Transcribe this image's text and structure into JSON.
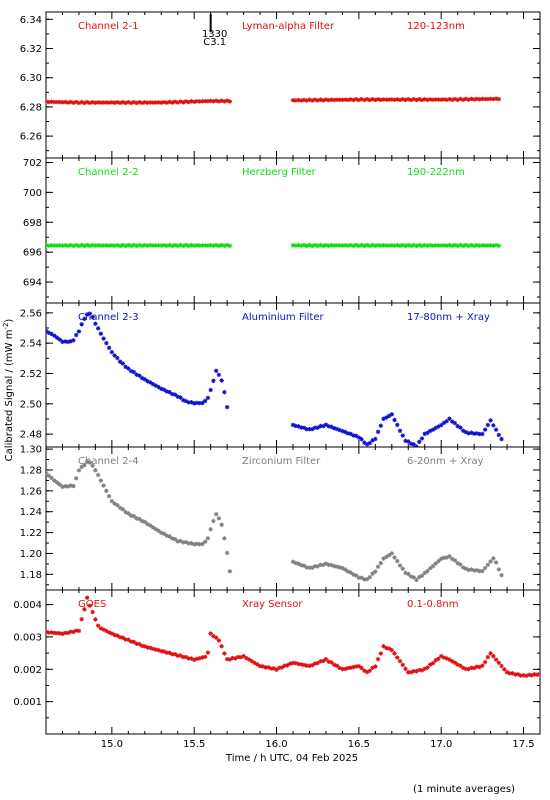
{
  "chart_data": {
    "type": "scatter",
    "marker": "asterisk",
    "xlabel": "Time / h UTC, 04 Feb 2025",
    "ylabel": "Calibrated Signal / (mW m",
    "ylabel_sup": "-2",
    "ylabel_close": ")",
    "footnote": "(1 minute averages)",
    "xlim": [
      14.6,
      17.6
    ],
    "xticks": [
      15.0,
      15.5,
      16.0,
      16.5,
      17.0,
      17.5
    ],
    "xtick_labels": [
      "15.0",
      "15.5",
      "16.0",
      "16.5",
      "17.0",
      "17.5"
    ],
    "annotations": [
      {
        "text1": "1330",
        "text2": "C3.1",
        "x": 15.6,
        "panel": 0
      }
    ],
    "panels": [
      {
        "labels": [
          "Channel 2-1",
          "Lyman-alpha Filter",
          "120-123nm"
        ],
        "color": "#e01010",
        "ylim": [
          6.245,
          6.345
        ],
        "yticks": [
          6.26,
          6.28,
          6.3,
          6.32,
          6.34
        ],
        "ytick_labels": [
          "6.26",
          "6.28",
          "6.30",
          "6.32",
          "6.34"
        ],
        "knots": [
          [
            14.6,
            6.2835
          ],
          [
            14.8,
            6.283
          ],
          [
            15.0,
            6.283
          ],
          [
            15.3,
            6.283
          ],
          [
            15.6,
            6.284
          ],
          [
            15.72,
            6.284
          ],
          [
            16.1,
            6.2845
          ],
          [
            16.5,
            6.285
          ],
          [
            17.0,
            6.285
          ],
          [
            17.35,
            6.2855
          ]
        ],
        "segments": [
          [
            14.6,
            15.72
          ],
          [
            16.1,
            17.35
          ]
        ]
      },
      {
        "labels": [
          "Channel 2-2",
          "Herzberg Filter",
          "190-222nm"
        ],
        "color": "#10dd10",
        "ylim": [
          692.6,
          702.3
        ],
        "yticks": [
          694,
          696,
          698,
          700,
          702
        ],
        "ytick_labels": [
          "694",
          "696",
          "698",
          "700",
          "702"
        ],
        "knots": [
          [
            14.6,
            696.45
          ],
          [
            15.0,
            696.45
          ],
          [
            15.5,
            696.45
          ],
          [
            15.72,
            696.45
          ],
          [
            16.1,
            696.45
          ],
          [
            16.8,
            696.45
          ],
          [
            17.35,
            696.45
          ]
        ],
        "segments": [
          [
            14.6,
            15.72
          ],
          [
            16.1,
            17.35
          ]
        ]
      },
      {
        "labels": [
          "Channel 2-3",
          "Aluminium Filter",
          "17-80nm + Xray"
        ],
        "color": "#1010d0",
        "ylim": [
          2.4715,
          2.5665
        ],
        "yticks": [
          2.48,
          2.5,
          2.52,
          2.54,
          2.56
        ],
        "ytick_labels": [
          "2.48",
          "2.50",
          "2.52",
          "2.54",
          "2.56"
        ],
        "knots": [
          [
            14.6,
            2.548
          ],
          [
            14.65,
            2.545
          ],
          [
            14.7,
            2.541
          ],
          [
            14.76,
            2.541
          ],
          [
            14.8,
            2.548
          ],
          [
            14.84,
            2.558
          ],
          [
            14.87,
            2.56
          ],
          [
            14.9,
            2.553
          ],
          [
            14.95,
            2.543
          ],
          [
            15.0,
            2.534
          ],
          [
            15.05,
            2.528
          ],
          [
            15.1,
            2.523
          ],
          [
            15.2,
            2.516
          ],
          [
            15.3,
            2.51
          ],
          [
            15.4,
            2.505
          ],
          [
            15.45,
            2.5015
          ],
          [
            15.5,
            2.5005
          ],
          [
            15.55,
            2.5005
          ],
          [
            15.58,
            2.503
          ],
          [
            15.61,
            2.512
          ],
          [
            15.63,
            2.522
          ],
          [
            15.66,
            2.518
          ],
          [
            15.69,
            2.505
          ],
          [
            15.71,
            2.49
          ],
          [
            16.1,
            2.486
          ],
          [
            16.2,
            2.483
          ],
          [
            16.3,
            2.486
          ],
          [
            16.35,
            2.484
          ],
          [
            16.4,
            2.482
          ],
          [
            16.5,
            2.478
          ],
          [
            16.55,
            2.473
          ],
          [
            16.6,
            2.477
          ],
          [
            16.65,
            2.49
          ],
          [
            16.7,
            2.493
          ],
          [
            16.78,
            2.476
          ],
          [
            16.85,
            2.472
          ],
          [
            16.9,
            2.48
          ],
          [
            17.0,
            2.486
          ],
          [
            17.05,
            2.49
          ],
          [
            17.15,
            2.481
          ],
          [
            17.25,
            2.48
          ],
          [
            17.3,
            2.489
          ],
          [
            17.38,
            2.474
          ]
        ],
        "segments": [
          [
            14.6,
            15.71
          ],
          [
            16.1,
            17.38
          ]
        ]
      },
      {
        "labels": [
          "Channel 2-4",
          "Zirconium Filter",
          "6-20nm + Xray"
        ],
        "color": "#808080",
        "ylim": [
          1.165,
          1.302
        ],
        "yticks": [
          1.18,
          1.2,
          1.22,
          1.24,
          1.26,
          1.28,
          1.3
        ],
        "ytick_labels": [
          "1.18",
          "1.20",
          "1.22",
          "1.24",
          "1.26",
          "1.28",
          "1.30"
        ],
        "knots": [
          [
            14.6,
            1.277
          ],
          [
            14.65,
            1.27
          ],
          [
            14.7,
            1.264
          ],
          [
            14.77,
            1.265
          ],
          [
            14.8,
            1.28
          ],
          [
            14.86,
            1.289
          ],
          [
            14.9,
            1.28
          ],
          [
            14.95,
            1.265
          ],
          [
            15.0,
            1.25
          ],
          [
            15.1,
            1.238
          ],
          [
            15.2,
            1.23
          ],
          [
            15.3,
            1.22
          ],
          [
            15.4,
            1.212
          ],
          [
            15.5,
            1.209
          ],
          [
            15.55,
            1.209
          ],
          [
            15.58,
            1.213
          ],
          [
            15.61,
            1.228
          ],
          [
            15.63,
            1.238
          ],
          [
            15.66,
            1.232
          ],
          [
            15.69,
            1.21
          ],
          [
            15.72,
            1.18
          ],
          [
            16.1,
            1.192
          ],
          [
            16.2,
            1.186
          ],
          [
            16.3,
            1.19
          ],
          [
            16.4,
            1.186
          ],
          [
            16.5,
            1.177
          ],
          [
            16.55,
            1.175
          ],
          [
            16.6,
            1.183
          ],
          [
            16.65,
            1.195
          ],
          [
            16.7,
            1.2
          ],
          [
            16.78,
            1.182
          ],
          [
            16.85,
            1.175
          ],
          [
            16.9,
            1.181
          ],
          [
            17.0,
            1.195
          ],
          [
            17.05,
            1.197
          ],
          [
            17.15,
            1.185
          ],
          [
            17.25,
            1.183
          ],
          [
            17.32,
            1.196
          ],
          [
            17.38,
            1.174
          ]
        ],
        "segments": [
          [
            14.6,
            15.72
          ],
          [
            16.1,
            17.38
          ]
        ]
      },
      {
        "labels": [
          "GOES",
          "Xray Sensor",
          "0.1-0.8nm"
        ],
        "color": "#e01010",
        "ylim": [
          0.0,
          0.00445
        ],
        "yticks": [
          0.001,
          0.002,
          0.003,
          0.004
        ],
        "ytick_labels": [
          "0.001",
          "0.002",
          "0.003",
          "0.004"
        ],
        "knots": [
          [
            14.6,
            0.00315
          ],
          [
            14.7,
            0.0031
          ],
          [
            14.8,
            0.0032
          ],
          [
            14.85,
            0.0042
          ],
          [
            14.88,
            0.0038
          ],
          [
            14.92,
            0.0033
          ],
          [
            15.0,
            0.0031
          ],
          [
            15.1,
            0.0029
          ],
          [
            15.2,
            0.0027
          ],
          [
            15.35,
            0.0025
          ],
          [
            15.5,
            0.0023
          ],
          [
            15.58,
            0.0024
          ],
          [
            15.6,
            0.0031
          ],
          [
            15.65,
            0.0029
          ],
          [
            15.7,
            0.0023
          ],
          [
            15.8,
            0.0024
          ],
          [
            15.9,
            0.0021
          ],
          [
            16.0,
            0.002
          ],
          [
            16.1,
            0.0022
          ],
          [
            16.2,
            0.0021
          ],
          [
            16.3,
            0.0023
          ],
          [
            16.4,
            0.002
          ],
          [
            16.5,
            0.0021
          ],
          [
            16.55,
            0.0019
          ],
          [
            16.6,
            0.0021
          ],
          [
            16.65,
            0.0027
          ],
          [
            16.7,
            0.0026
          ],
          [
            16.8,
            0.0019
          ],
          [
            16.9,
            0.002
          ],
          [
            17.0,
            0.0024
          ],
          [
            17.05,
            0.0023
          ],
          [
            17.15,
            0.002
          ],
          [
            17.25,
            0.0021
          ],
          [
            17.3,
            0.0025
          ],
          [
            17.4,
            0.0019
          ],
          [
            17.5,
            0.0018
          ],
          [
            17.6,
            0.00185
          ]
        ],
        "segments": [
          [
            14.6,
            17.6
          ]
        ]
      }
    ]
  }
}
